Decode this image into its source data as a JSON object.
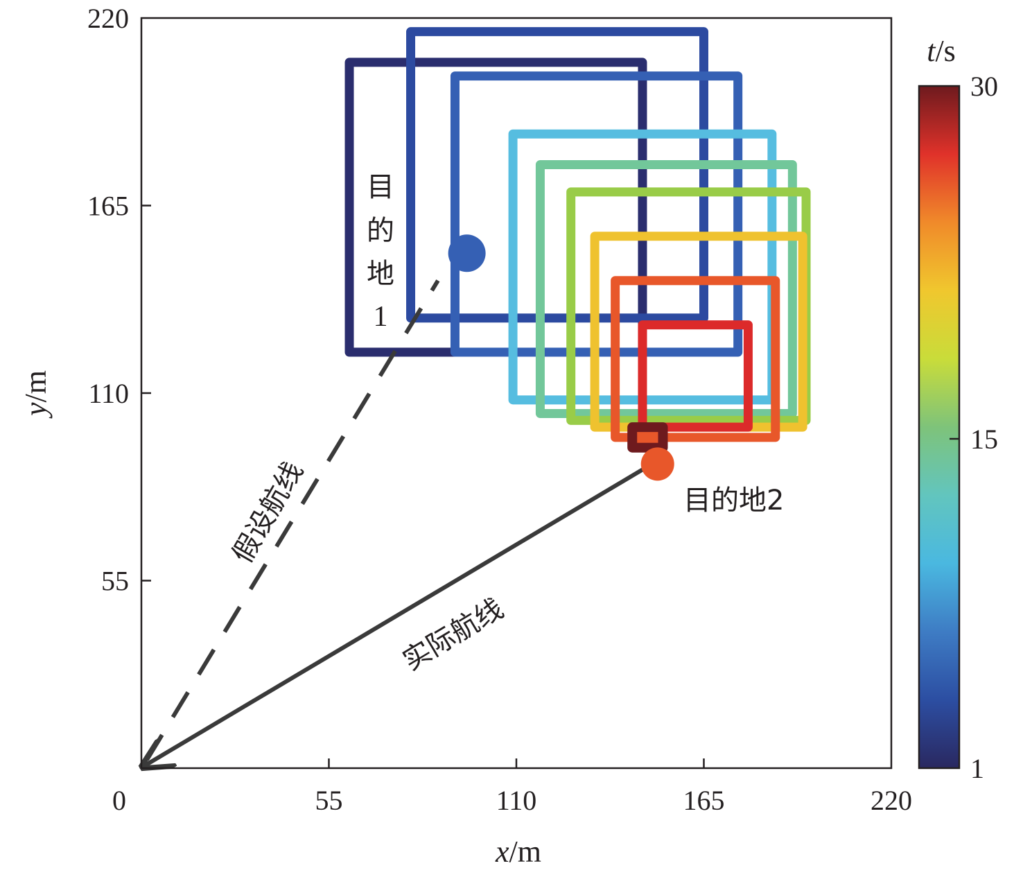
{
  "chart_data": {
    "type": "scatter",
    "title": "",
    "xlabel_var": "x",
    "xlabel_unit": "/m",
    "ylabel_var": "y",
    "ylabel_unit": "/m",
    "xlim": [
      0,
      220
    ],
    "ylim": [
      0,
      220
    ],
    "xticks": [
      "0",
      "55",
      "110",
      "165",
      "220"
    ],
    "yticks": [
      "55",
      "110",
      "165",
      "220"
    ],
    "xtick_values": [
      0,
      55,
      110,
      165,
      220
    ],
    "ytick_values": [
      55,
      110,
      165,
      220
    ],
    "grid": false,
    "colorbar": {
      "label_var": "t",
      "label_unit": "/s",
      "range": [
        1,
        30
      ],
      "ticks": [
        "1",
        "15",
        "30"
      ],
      "tick_values": [
        1,
        15,
        30
      ],
      "colormap": [
        "#2a2860",
        "#2c4ea2",
        "#3e7cc4",
        "#4ab8e0",
        "#62c5be",
        "#7ec37a",
        "#c9dc3a",
        "#f0c72e",
        "#f08a2a",
        "#e0322a",
        "#6e1a1e"
      ]
    },
    "boxes": [
      {
        "t": 1,
        "x": [
          61,
          147
        ],
        "y": [
          122,
          207
        ],
        "color": "#2a2d6e"
      },
      {
        "t": 3,
        "x": [
          79,
          165
        ],
        "y": [
          132,
          216
        ],
        "color": "#2c4aa0"
      },
      {
        "t": 5,
        "x": [
          92,
          175
        ],
        "y": [
          122,
          203
        ],
        "color": "#3560b4"
      },
      {
        "t": 11,
        "x": [
          109,
          185
        ],
        "y": [
          108,
          186
        ],
        "color": "#56bde0"
      },
      {
        "t": 13,
        "x": [
          117,
          191
        ],
        "y": [
          104,
          177
        ],
        "color": "#72c79a"
      },
      {
        "t": 16,
        "x": [
          126,
          195
        ],
        "y": [
          102,
          169
        ],
        "color": "#99cc48"
      },
      {
        "t": 19,
        "x": [
          133,
          194
        ],
        "y": [
          100,
          156
        ],
        "color": "#efc22f"
      },
      {
        "t": 23,
        "x": [
          139,
          186
        ],
        "y": [
          97,
          143
        ],
        "color": "#e8572a"
      },
      {
        "t": 26,
        "x": [
          147,
          178
        ],
        "y": [
          100,
          130
        ],
        "color": "#dc2a2a"
      },
      {
        "t": 30,
        "x": [
          144,
          153
        ],
        "y": [
          94,
          100
        ],
        "color": "#6e1a1e"
      }
    ],
    "destination1": {
      "label_chars": [
        "目",
        "的",
        "地",
        "1"
      ],
      "x": 90,
      "y": 150,
      "color": "#3560b4"
    },
    "destination2": {
      "label": "目的地2",
      "x": 150,
      "y": 90,
      "color": "#e8572a"
    },
    "assumed_route": {
      "label": "假设航线",
      "from": [
        0,
        0
      ],
      "to": [
        87,
        143
      ],
      "style": "dashed"
    },
    "actual_route": {
      "label": "实际航线",
      "from": [
        0,
        0
      ],
      "to": [
        150,
        90
      ],
      "style": "solid"
    }
  }
}
